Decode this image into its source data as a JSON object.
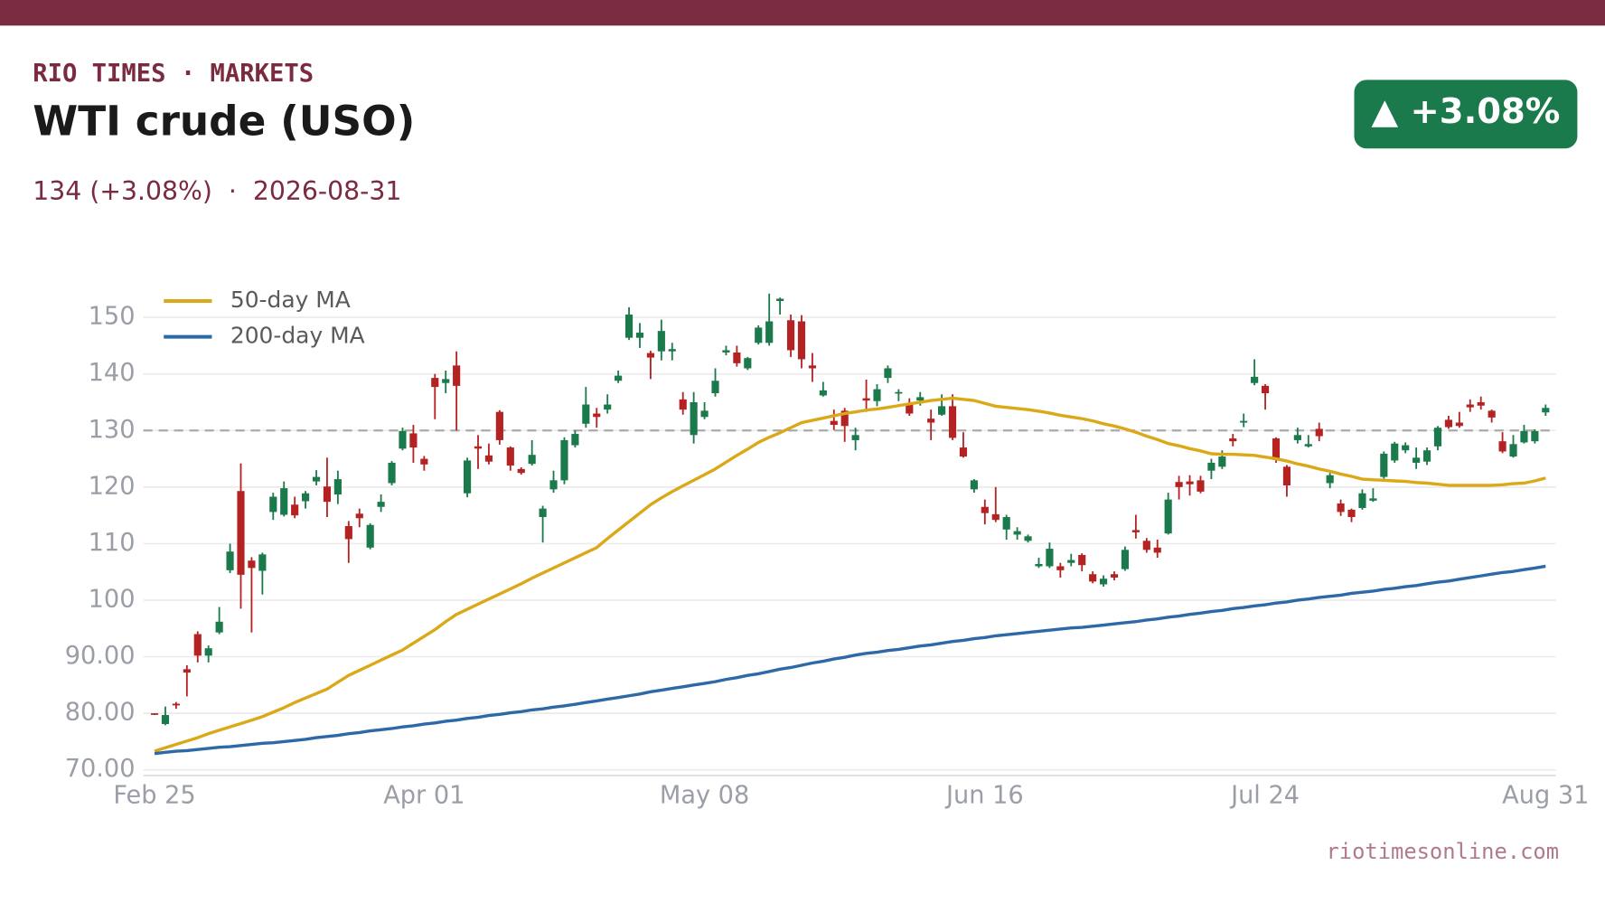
{
  "header": {
    "kicker": "RIO TIMES · MARKETS",
    "subtitle": "134 (+3.08%)  ·  2026-08-31",
    "badge": "▲ +3.08%",
    "footer": "riotimesonline.com"
  },
  "chart_data": {
    "type": "candlestick",
    "title": "WTI crude (USO)",
    "categories": [
      "Feb 25",
      null,
      null,
      null,
      null,
      null,
      null,
      null,
      null,
      null,
      null,
      null,
      null,
      null,
      null,
      null,
      null,
      null,
      null,
      null,
      null,
      null,
      null,
      null,
      null,
      "Apr 01",
      null,
      null,
      null,
      null,
      null,
      null,
      null,
      null,
      null,
      null,
      null,
      null,
      null,
      null,
      null,
      null,
      null,
      null,
      null,
      null,
      null,
      null,
      null,
      null,
      null,
      "May 08",
      null,
      null,
      null,
      null,
      null,
      null,
      null,
      null,
      null,
      null,
      null,
      null,
      null,
      null,
      null,
      null,
      null,
      null,
      null,
      null,
      null,
      null,
      null,
      null,
      null,
      "Jun 16",
      null,
      null,
      null,
      null,
      null,
      null,
      null,
      null,
      null,
      null,
      null,
      null,
      null,
      null,
      null,
      null,
      null,
      null,
      null,
      null,
      null,
      null,
      null,
      null,
      null,
      "Jul 24",
      null,
      null,
      null,
      null,
      null,
      null,
      null,
      null,
      null,
      null,
      null,
      null,
      null,
      null,
      null,
      null,
      null,
      null,
      null,
      null,
      null,
      null,
      null,
      null,
      null,
      "Aug 31"
    ],
    "open": [
      80,
      78.1,
      81.7,
      87.8,
      94,
      90.2,
      94.3,
      105.3,
      119.3,
      107,
      105.2,
      115.6,
      115.1,
      116.9,
      117.5,
      121,
      120.1,
      118.7,
      113.1,
      115.3,
      109.3,
      116.5,
      120.7,
      126.8,
      129.5,
      125,
      139.3,
      138.4,
      141.5,
      118.9,
      127.2,
      125.6,
      133.3,
      127,
      123.2,
      124.1,
      114.7,
      119.6,
      121.2,
      127.4,
      131.2,
      133,
      133.7,
      138.8,
      146.4,
      146.4,
      143.7,
      144,
      144,
      135.5,
      129.2,
      132.4,
      136.6,
      143.8,
      143.8,
      141,
      145.5,
      145.5,
      152.9,
      149.5,
      149.3,
      141.5,
      136.2,
      131.7,
      133.5,
      128.3,
      135.7,
      135.2,
      139.3,
      136.6,
      134.8,
      135.3,
      132.1,
      132.8,
      134.3,
      127,
      119.6,
      116.5,
      115.2,
      112.5,
      111.6,
      110.5,
      106,
      106,
      106,
      106.6,
      108,
      104.6,
      102.8,
      104.6,
      105.5,
      112.4,
      110.5,
      109.3,
      111.8,
      120.9,
      121,
      121.2,
      122.9,
      123.6,
      128.6,
      131.4,
      138.4,
      137.9,
      128.6,
      123.6,
      128.3,
      127.2,
      130.3,
      120.7,
      117.1,
      116,
      116.3,
      117.6,
      121.8,
      124.7,
      126.5,
      124.3,
      124.5,
      127.2,
      131.9,
      131.4,
      134.6,
      135,
      133.5,
      128.1,
      125.4,
      127.9,
      128.1,
      133.2
    ],
    "high": [
      80,
      81.2,
      82,
      88.5,
      94.5,
      92,
      98.8,
      110,
      124.2,
      107.6,
      108.4,
      119,
      121,
      118.3,
      119.3,
      123,
      125.2,
      122.9,
      114,
      116.2,
      113.6,
      118.7,
      124.6,
      130.5,
      131,
      125.5,
      140,
      140.6,
      144,
      125.2,
      129.2,
      127.7,
      133.6,
      127.2,
      123.5,
      128.3,
      116.7,
      122.9,
      128.8,
      130,
      137.7,
      134,
      136.4,
      140.6,
      151.8,
      149,
      144.1,
      149.6,
      145.5,
      136.8,
      136.8,
      135,
      141,
      145,
      145,
      143,
      148.6,
      154.2,
      153.5,
      150.5,
      150.4,
      143.7,
      138.6,
      133.7,
      134,
      130.5,
      139,
      138.2,
      141.5,
      137.3,
      135.7,
      136.8,
      133.7,
      136.4,
      136.4,
      129.7,
      121.4,
      117.8,
      120,
      115.1,
      112.9,
      111.6,
      107.5,
      110.2,
      106.6,
      108.2,
      108.3,
      105.1,
      104.4,
      105.1,
      109.5,
      115.1,
      111,
      110.7,
      119,
      122,
      122.1,
      122,
      125,
      126.5,
      129.4,
      133,
      142.6,
      138.2,
      128.8,
      123.9,
      130.5,
      129.2,
      131.4,
      122.5,
      117.8,
      116.2,
      119.6,
      119.8,
      126.3,
      128,
      127.9,
      127,
      127,
      130.8,
      132.6,
      133.3,
      135.5,
      136,
      133.7,
      129.7,
      129.2,
      131,
      130.2,
      134.6
    ],
    "low": [
      79.7,
      77.9,
      80.8,
      83,
      89,
      89,
      94,
      104.8,
      98.5,
      94.3,
      101,
      114.2,
      114.8,
      114.5,
      116.2,
      120.3,
      114.7,
      117,
      106.6,
      112.9,
      109,
      115.6,
      120.3,
      126.5,
      124.3,
      122.9,
      132,
      136.6,
      130,
      118.2,
      123.2,
      124,
      127.5,
      122.9,
      122.2,
      123.8,
      110.2,
      119,
      120.5,
      127,
      130.5,
      130.5,
      133,
      138.4,
      146,
      144.6,
      139.1,
      142.4,
      142.4,
      132.8,
      127.7,
      132,
      136,
      143.3,
      141.3,
      140.7,
      145.2,
      145,
      150.5,
      143,
      141,
      138.6,
      136,
      130.1,
      128,
      126.5,
      133.3,
      134.3,
      138.4,
      135.2,
      132.6,
      134.4,
      128.3,
      132.6,
      128.3,
      125.2,
      119,
      113.4,
      113.8,
      110.7,
      110.7,
      110.2,
      105.7,
      105.7,
      104,
      106,
      105.1,
      103,
      102.4,
      103.5,
      105.2,
      110.9,
      108.4,
      107.5,
      111.6,
      117.8,
      118.5,
      118.9,
      121.4,
      123.2,
      127.2,
      130.6,
      138,
      133.7,
      124.3,
      118.3,
      127.7,
      127,
      128.1,
      119.8,
      114.9,
      113.8,
      116,
      117.4,
      121.5,
      124.3,
      126,
      123.2,
      123.9,
      126.5,
      130.3,
      130.5,
      133.3,
      133.7,
      131.4,
      126,
      125.2,
      127.7,
      127.7,
      132.6
    ],
    "close": [
      79.8,
      79.7,
      81.4,
      87.2,
      90.2,
      91.5,
      96.2,
      108.6,
      104.5,
      105.7,
      108.1,
      118.3,
      119.8,
      115,
      118.9,
      121.8,
      117.4,
      121.4,
      110.8,
      114.5,
      113.3,
      117.4,
      124.3,
      129.9,
      127,
      124,
      137.7,
      139.1,
      137.9,
      124.7,
      126.8,
      124.5,
      128.3,
      123.8,
      122.5,
      125.7,
      116.2,
      121.2,
      128.3,
      129.4,
      134.6,
      132.4,
      134.6,
      139.7,
      150.5,
      147.3,
      142.9,
      147.6,
      144.4,
      133.7,
      135,
      133.5,
      138.8,
      144.2,
      141.9,
      142.8,
      148.2,
      149.3,
      153.3,
      144.2,
      142.6,
      141,
      137.1,
      131,
      130.8,
      129.2,
      135.3,
      137.3,
      141,
      136.8,
      133,
      135.9,
      131.4,
      134.3,
      128.7,
      125.4,
      121.2,
      115.4,
      114.2,
      114.7,
      112.2,
      111.3,
      106.4,
      109.1,
      105.3,
      107.1,
      106.2,
      103.3,
      103.8,
      104,
      108.9,
      112,
      108.9,
      108.4,
      117.8,
      120,
      120.5,
      119.2,
      124.3,
      125.4,
      128.1,
      131.7,
      139.5,
      136.6,
      124.8,
      120.3,
      129.2,
      127.6,
      129,
      122.1,
      115.6,
      114.7,
      118.9,
      118,
      125.9,
      127.7,
      127.4,
      125.2,
      126.5,
      130.5,
      130.6,
      130.8,
      134.1,
      134.4,
      132.3,
      126.3,
      127.6,
      129.9,
      129.9,
      134
    ],
    "up_color": "#1b7a4b",
    "down_color": "#b42222",
    "series": [
      {
        "name": "50-day MA",
        "color": "#dba917",
        "values": [
          73.3,
          73.9,
          74.5,
          75.1,
          75.7,
          76.4,
          77.0,
          77.6,
          78.2,
          78.8,
          79.4,
          80.2,
          81.0,
          81.9,
          82.7,
          83.5,
          84.3,
          85.5,
          86.7,
          87.6,
          88.5,
          89.4,
          90.3,
          91.2,
          92.4,
          93.6,
          94.8,
          96.2,
          97.5,
          98.4,
          99.3,
          100.2,
          101.1,
          102,
          102.9,
          103.9,
          104.8,
          105.7,
          106.6,
          107.5,
          108.4,
          109.3,
          110.9,
          112.4,
          113.9,
          115.4,
          116.9,
          118.1,
          119.2,
          120.2,
          121.2,
          122.2,
          123.2,
          124.4,
          125.6,
          126.7,
          127.9,
          128.8,
          129.6,
          130.5,
          131.4,
          131.8,
          132.2,
          132.6,
          133,
          133.3,
          133.6,
          133.8,
          134.1,
          134.4,
          134.7,
          135.0,
          135.3,
          135.5,
          135.7,
          135.5,
          135.3,
          134.8,
          134.3,
          134.1,
          133.9,
          133.7,
          133.4,
          133.1,
          132.7,
          132.4,
          132.1,
          131.7,
          131.2,
          130.8,
          130.3,
          129.7,
          129.0,
          128.4,
          127.7,
          127.3,
          126.8,
          126.4,
          125.9,
          125.8,
          125.8,
          125.7,
          125.6,
          125.3,
          125,
          124.6,
          124.1,
          123.7,
          123.2,
          122.8,
          122.3,
          121.9,
          121.4,
          121.3,
          121.2,
          121.1,
          121,
          120.8,
          120.7,
          120.5,
          120.3,
          120.3,
          120.3,
          120.3,
          120.3,
          120.4,
          120.6,
          120.7,
          121.1,
          121.6
        ]
      },
      {
        "name": "200-day MA",
        "color": "#2e69a7",
        "values": [
          72.9,
          73.1,
          73.3,
          73.4,
          73.6,
          73.8,
          74.0,
          74.1,
          74.3,
          74.5,
          74.7,
          74.8,
          75.0,
          75.2,
          75.4,
          75.7,
          75.9,
          76.1,
          76.4,
          76.6,
          76.9,
          77.1,
          77.3,
          77.6,
          77.8,
          78.1,
          78.3,
          78.6,
          78.8,
          79.1,
          79.3,
          79.6,
          79.8,
          80.1,
          80.3,
          80.6,
          80.8,
          81.1,
          81.3,
          81.6,
          81.9,
          82.2,
          82.5,
          82.8,
          83.1,
          83.4,
          83.8,
          84.1,
          84.4,
          84.7,
          85.0,
          85.3,
          85.6,
          86.0,
          86.3,
          86.7,
          87.0,
          87.4,
          87.8,
          88.1,
          88.5,
          88.9,
          89.2,
          89.6,
          89.9,
          90.3,
          90.6,
          90.8,
          91.1,
          91.3,
          91.6,
          91.9,
          92.1,
          92.4,
          92.7,
          92.9,
          93.2,
          93.4,
          93.7,
          93.9,
          94.1,
          94.3,
          94.5,
          94.7,
          94.9,
          95.1,
          95.2,
          95.4,
          95.6,
          95.8,
          96.0,
          96.2,
          96.5,
          96.7,
          97.0,
          97.2,
          97.5,
          97.7,
          98.0,
          98.2,
          98.5,
          98.7,
          99.0,
          99.2,
          99.5,
          99.7,
          100.0,
          100.2,
          100.5,
          100.7,
          100.9,
          101.2,
          101.4,
          101.6,
          101.9,
          102.1,
          102.4,
          102.6,
          102.9,
          103.2,
          103.4,
          103.7,
          104.0,
          104.3,
          104.6,
          104.9,
          105.1,
          105.4,
          105.7,
          106.0
        ]
      }
    ],
    "reference_line": 130,
    "ylim": [
      69,
      155
    ],
    "yticks": [
      {
        "value": 70,
        "label": "70.00"
      },
      {
        "value": 80,
        "label": "80.00"
      },
      {
        "value": 90,
        "label": "90.00"
      },
      100,
      110,
      120,
      130,
      140,
      150
    ],
    "grid": true,
    "legend": "upper left"
  }
}
